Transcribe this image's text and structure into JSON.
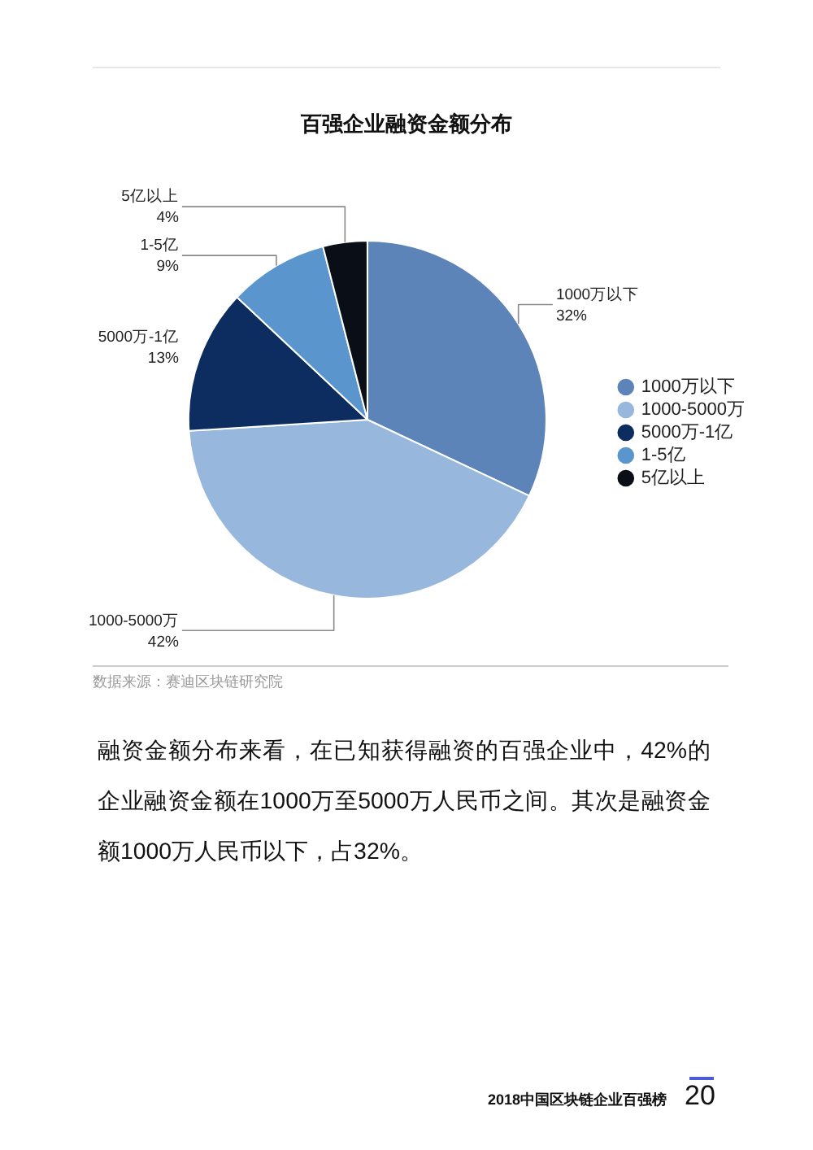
{
  "chart_data": {
    "type": "pie",
    "title": "百强企业融资金额分布",
    "categories": [
      "1000万以下",
      "1000-5000万",
      "5000万-1亿",
      "1-5亿",
      "5亿以上"
    ],
    "values": [
      32,
      42,
      13,
      9,
      4
    ],
    "colors": [
      "#5d84b8",
      "#97b8dc",
      "#0d2c5f",
      "#5a96cd",
      "#0a0e16"
    ],
    "value_labels": [
      "32%",
      "42%",
      "13%",
      "9%",
      "4%"
    ],
    "legend": "right",
    "annotations": [
      "数据来源：赛迪区块链研究院",
      "融资金额分布来看，在已知获得融资的百强企业中，42%的企业融资金额在1000万至5000万人民币之间。其次是融资金额1000万人民币以下，占32%。",
      "2018中国区块链企业百强榜",
      "20"
    ]
  }
}
